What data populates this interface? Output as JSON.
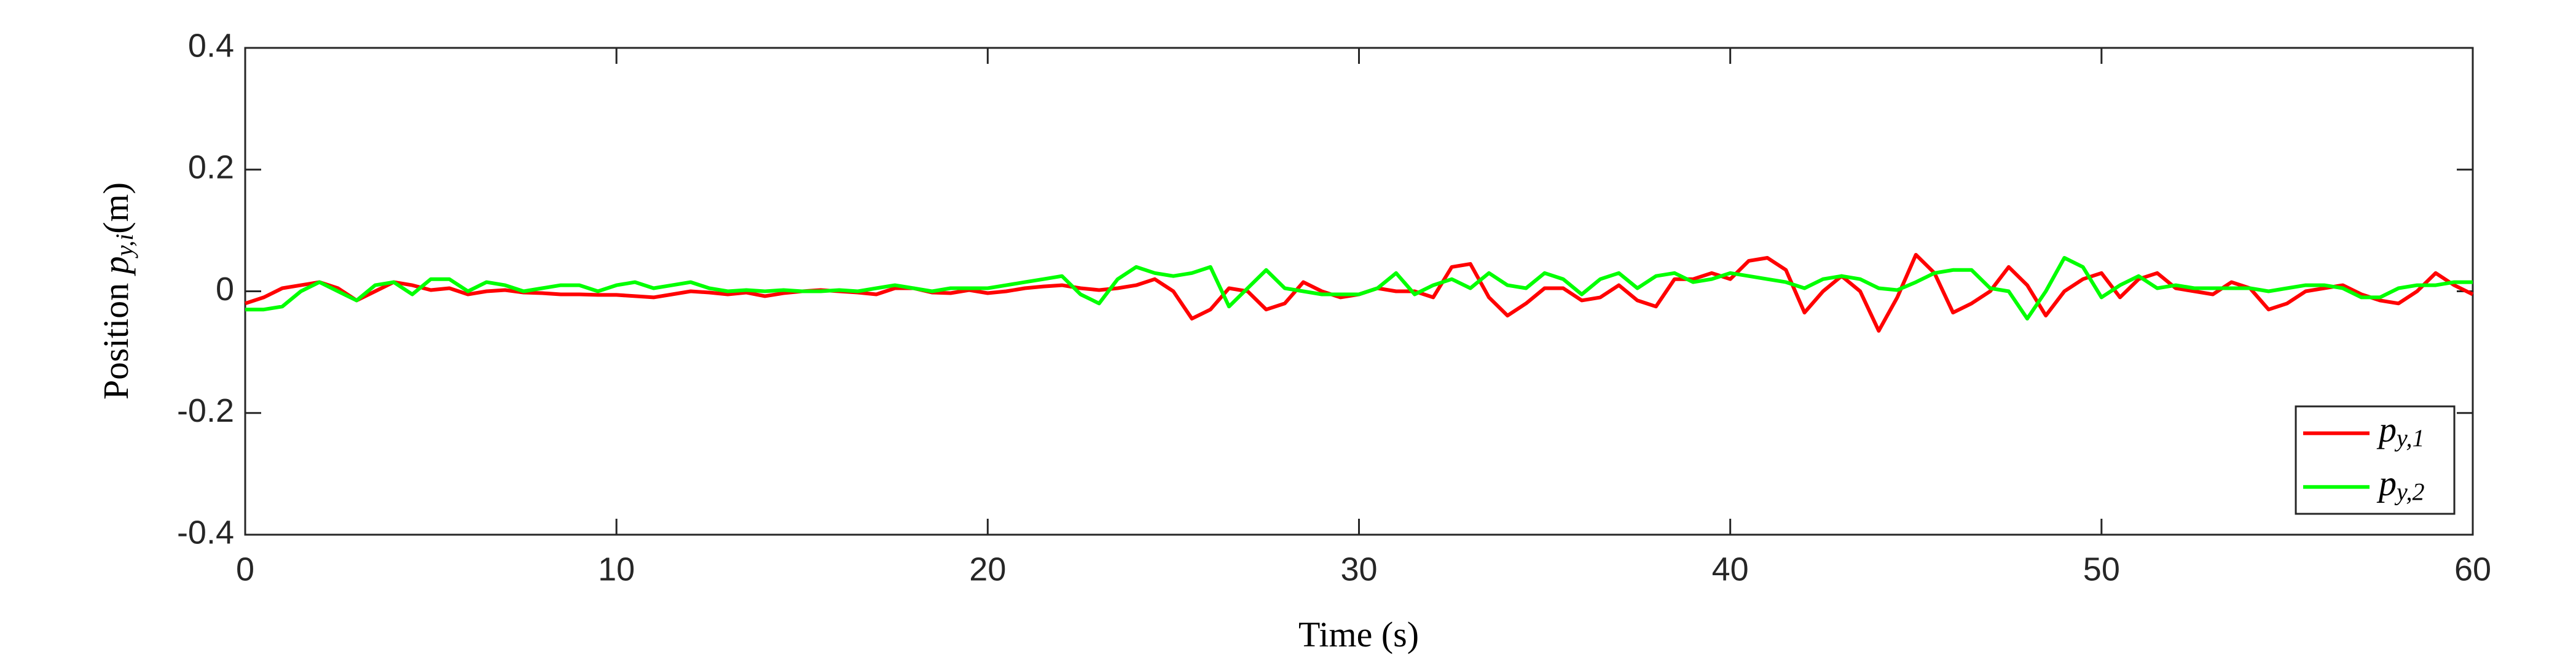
{
  "chart_data": {
    "type": "line",
    "xlabel": {
      "text": "Time",
      "unit": "(s)"
    },
    "ylabel": {
      "text": "Position",
      "symbol": "p",
      "subscript": "y,i",
      "unit": "(m)"
    },
    "x": [
      0,
      0.5,
      1,
      1.5,
      2,
      2.5,
      3,
      3.5,
      4,
      4.5,
      5,
      5.5,
      6,
      6.5,
      7,
      7.5,
      8,
      8.5,
      9,
      9.5,
      10,
      10.5,
      11,
      11.5,
      12,
      12.5,
      13,
      13.5,
      14,
      14.5,
      15,
      15.5,
      16,
      16.5,
      17,
      17.5,
      18,
      18.5,
      19,
      19.5,
      20,
      20.5,
      21,
      21.5,
      22,
      22.5,
      23,
      23.5,
      24,
      24.5,
      25,
      25.5,
      26,
      26.5,
      27,
      27.5,
      28,
      28.5,
      29,
      29.5,
      30,
      30.5,
      31,
      31.5,
      32,
      32.5,
      33,
      33.5,
      34,
      34.5,
      35,
      35.5,
      36,
      36.5,
      37,
      37.5,
      38,
      38.5,
      39,
      39.5,
      40,
      40.5,
      41,
      41.5,
      42,
      42.5,
      43,
      43.5,
      44,
      44.5,
      45,
      45.5,
      46,
      46.5,
      47,
      47.5,
      48,
      48.5,
      49,
      49.5,
      50,
      50.5,
      51,
      51.5,
      52,
      52.5,
      53,
      53.5,
      54,
      54.5,
      55,
      55.5,
      56,
      56.5,
      57,
      57.5,
      58,
      58.5,
      59,
      59.5,
      60
    ],
    "series": [
      {
        "name": "p",
        "name_subscript": "y,1",
        "color": "#ff0000",
        "values": [
          -0.02,
          -0.01,
          0.005,
          0.01,
          0.015,
          0.005,
          -0.015,
          0,
          0.015,
          0.01,
          0.002,
          0.005,
          -0.005,
          0,
          0.002,
          -0.002,
          -0.003,
          -0.005,
          -0.005,
          -0.006,
          -0.006,
          -0.008,
          -0.01,
          -0.005,
          0,
          -0.002,
          -0.005,
          -0.002,
          -0.008,
          -0.003,
          0,
          0.002,
          0,
          -0.002,
          -0.005,
          0.005,
          0.005,
          -0.002,
          -0.003,
          0.002,
          -0.003,
          0,
          0.005,
          0.008,
          0.01,
          0.005,
          0.002,
          0.005,
          0.01,
          0.02,
          0,
          -0.045,
          -0.03,
          0.005,
          0,
          -0.03,
          -0.02,
          0.015,
          0,
          -0.01,
          -0.005,
          0.005,
          0,
          0,
          -0.01,
          0.04,
          0.045,
          -0.01,
          -0.04,
          -0.02,
          0.005,
          0.005,
          -0.015,
          -0.01,
          0.01,
          -0.015,
          -0.025,
          0.02,
          0.02,
          0.03,
          0.02,
          0.05,
          0.055,
          0.035,
          -0.035,
          0,
          0.025,
          0,
          -0.065,
          -0.01,
          0.06,
          0.03,
          -0.035,
          -0.02,
          0,
          0.04,
          0.01,
          -0.04,
          0,
          0.02,
          0.03,
          -0.01,
          0.02,
          0.03,
          0.005,
          0,
          -0.005,
          0.015,
          0.005,
          -0.03,
          -0.02,
          0,
          0.005,
          0.01,
          -0.005,
          -0.015,
          -0.02,
          0,
          0.03,
          0.01,
          -0.005
        ]
      },
      {
        "name": "p",
        "name_subscript": "y,2",
        "color": "#00ff00",
        "values": [
          -0.03,
          -0.03,
          -0.025,
          0,
          0.015,
          0,
          -0.015,
          0.01,
          0.015,
          -0.005,
          0.02,
          0.02,
          0,
          0.015,
          0.01,
          0,
          0.005,
          0.01,
          0.01,
          0,
          0.01,
          0.015,
          0.005,
          0.01,
          0.015,
          0.005,
          0,
          0.002,
          0,
          0.002,
          0,
          0,
          0.002,
          0,
          0.005,
          0.01,
          0.005,
          0,
          0.005,
          0.005,
          0.005,
          0.01,
          0.015,
          0.02,
          0.025,
          -0.005,
          -0.02,
          0.02,
          0.04,
          0.03,
          0.025,
          0.03,
          0.04,
          -0.025,
          0.005,
          0.035,
          0.005,
          0,
          -0.005,
          -0.005,
          -0.005,
          0.005,
          0.03,
          -0.005,
          0.01,
          0.02,
          0.005,
          0.03,
          0.01,
          0.005,
          0.03,
          0.02,
          -0.005,
          0.02,
          0.03,
          0.005,
          0.025,
          0.03,
          0.015,
          0.02,
          0.03,
          0.025,
          0.02,
          0.015,
          0.005,
          0.02,
          0.025,
          0.02,
          0.005,
          0.002,
          0.015,
          0.03,
          0.035,
          0.035,
          0.005,
          0,
          -0.045,
          0,
          0.055,
          0.04,
          -0.01,
          0.01,
          0.025,
          0.005,
          0.01,
          0.005,
          0.005,
          0.005,
          0.005,
          0,
          0.005,
          0.01,
          0.01,
          0.005,
          -0.01,
          -0.01,
          0.005,
          0.01,
          0.01,
          0.015,
          0.015
        ]
      }
    ],
    "xlim": [
      0,
      60
    ],
    "xticks": [
      0,
      10,
      20,
      30,
      40,
      50,
      60
    ],
    "ylim": [
      -0.4,
      0.4
    ],
    "yticks": [
      -0.4,
      -0.2,
      0,
      0.2,
      0.4
    ],
    "grid": false,
    "legend": "lower right"
  }
}
